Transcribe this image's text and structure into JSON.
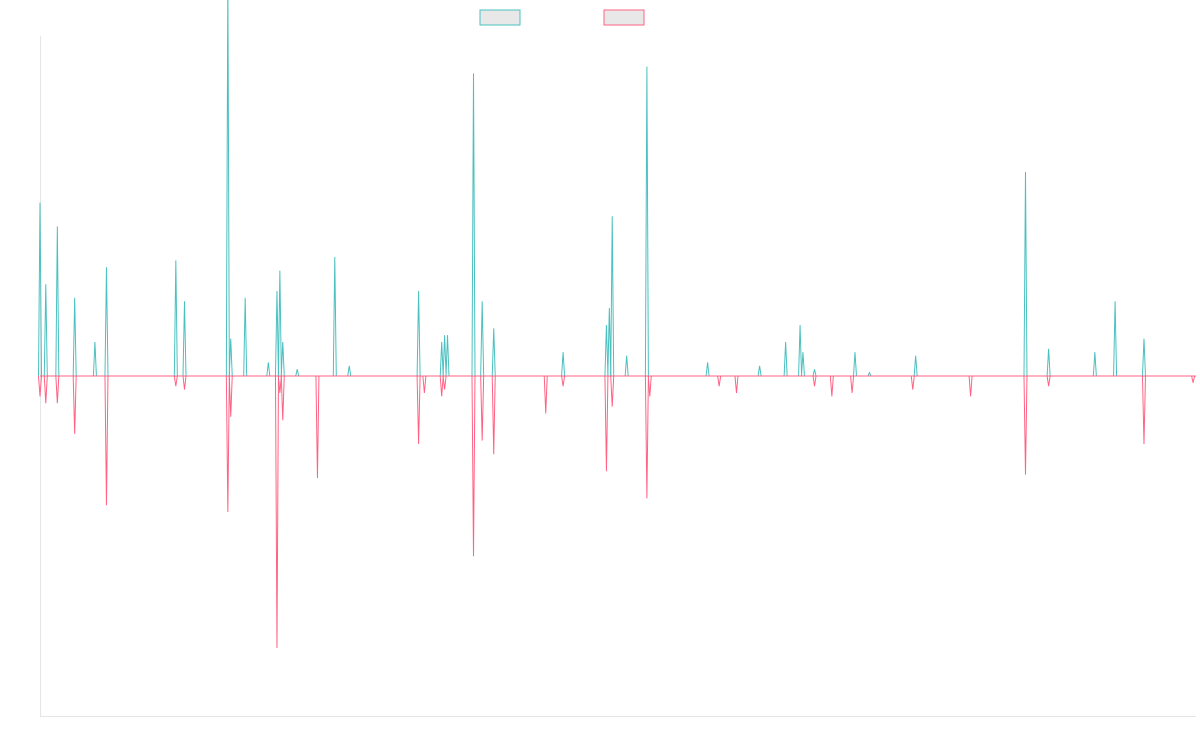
{
  "chart_data": {
    "type": "line",
    "title": "",
    "xlabel": "",
    "ylabel": "",
    "x_range": [
      0,
      400
    ],
    "y_range": [
      -100,
      100
    ],
    "y_center": 0,
    "grid": false,
    "legend_position": "top-center",
    "series": [
      {
        "color": "#4bc0c0",
        "fill": "#e8e8e8",
        "legend_label": "",
        "values": [
          [
            0,
            51
          ],
          [
            2,
            27
          ],
          [
            6,
            44
          ],
          [
            12,
            23
          ],
          [
            19,
            10
          ],
          [
            23,
            32
          ],
          [
            47,
            34
          ],
          [
            50,
            22
          ],
          [
            65,
            118
          ],
          [
            66,
            11
          ],
          [
            71,
            23
          ],
          [
            79,
            4
          ],
          [
            82,
            25
          ],
          [
            83,
            31
          ],
          [
            84,
            10
          ],
          [
            89,
            2
          ],
          [
            102,
            35
          ],
          [
            107,
            3
          ],
          [
            131,
            25
          ],
          [
            139,
            10
          ],
          [
            140,
            12
          ],
          [
            141,
            12
          ],
          [
            150,
            89
          ],
          [
            153,
            22
          ],
          [
            157,
            14
          ],
          [
            181,
            7
          ],
          [
            196,
            15
          ],
          [
            197,
            20
          ],
          [
            198,
            47
          ],
          [
            203,
            6
          ],
          [
            210,
            91
          ],
          [
            231,
            4
          ],
          [
            249,
            3
          ],
          [
            258,
            10
          ],
          [
            263,
            15
          ],
          [
            264,
            7
          ],
          [
            268,
            2
          ],
          [
            282,
            7
          ],
          [
            287,
            1
          ],
          [
            303,
            6
          ],
          [
            341,
            60
          ],
          [
            349,
            8
          ],
          [
            365,
            7
          ],
          [
            372,
            22
          ],
          [
            382,
            11
          ]
        ]
      },
      {
        "color": "#ff6384",
        "fill": "#e8e8e8",
        "legend_label": "",
        "values": [
          [
            0,
            -6
          ],
          [
            2,
            -8
          ],
          [
            6,
            -8
          ],
          [
            12,
            -17
          ],
          [
            23,
            -38
          ],
          [
            47,
            -3
          ],
          [
            50,
            -4
          ],
          [
            65,
            -40
          ],
          [
            66,
            -12
          ],
          [
            82,
            -80
          ],
          [
            83,
            -5
          ],
          [
            84,
            -13
          ],
          [
            96,
            -30
          ],
          [
            131,
            -20
          ],
          [
            133,
            -5
          ],
          [
            139,
            -6
          ],
          [
            140,
            -4
          ],
          [
            150,
            -53
          ],
          [
            153,
            -19
          ],
          [
            157,
            -23
          ],
          [
            175,
            -11
          ],
          [
            181,
            -3
          ],
          [
            196,
            -28
          ],
          [
            198,
            -9
          ],
          [
            210,
            -36
          ],
          [
            211,
            -6
          ],
          [
            235,
            -3
          ],
          [
            241,
            -5
          ],
          [
            268,
            -3
          ],
          [
            274,
            -6
          ],
          [
            281,
            -5
          ],
          [
            302,
            -4
          ],
          [
            322,
            -6
          ],
          [
            341,
            -29
          ],
          [
            349,
            -3
          ],
          [
            382,
            -20
          ],
          [
            399,
            -2
          ]
        ]
      }
    ]
  }
}
